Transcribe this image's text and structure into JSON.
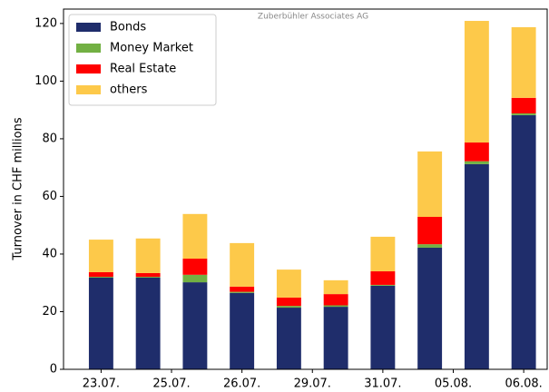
{
  "chart_data": {
    "type": "bar",
    "stacked": true,
    "annotation": "Zuberbühler Associates AG",
    "y_label": "Turnover in CHF millions",
    "xlim": [
      -0.8,
      9.5
    ],
    "xticks": [
      {
        "value": 0,
        "label": "23.07."
      },
      {
        "value": 1.5,
        "label": "25.07."
      },
      {
        "value": 3,
        "label": "26.07."
      },
      {
        "value": 4.5,
        "label": "29.07."
      },
      {
        "value": 6,
        "label": "31.07."
      },
      {
        "value": 7.5,
        "label": "05.08."
      },
      {
        "value": 9,
        "label": "06.08."
      }
    ],
    "ylim": [
      0,
      125
    ],
    "yticks": [
      0,
      20,
      40,
      60,
      80,
      100,
      120
    ],
    "legend": "upper left",
    "series": [
      {
        "name": "Bonds",
        "color": "#1f2d6b",
        "values": [
          31.8,
          31.8,
          30.2,
          26.5,
          21.4,
          21.7,
          29,
          42.2,
          71.2,
          88.2
        ]
      },
      {
        "name": "Money Market",
        "color": "#72b043",
        "values": [
          0.3,
          0.3,
          2.6,
          0.4,
          0.6,
          0.5,
          0.3,
          1.2,
          1.0,
          0.6
        ]
      },
      {
        "name": "Real Estate",
        "color": "#ff0000",
        "values": [
          1.6,
          1.3,
          5.6,
          1.8,
          2.9,
          3.9,
          4.7,
          9.5,
          6.5,
          5.4
        ]
      },
      {
        "name": "others",
        "color": "#fdc94a",
        "values": [
          11.3,
          12,
          15.5,
          15.1,
          9.7,
          4.8,
          12,
          22.7,
          42.2,
          24.5
        ]
      }
    ]
  }
}
